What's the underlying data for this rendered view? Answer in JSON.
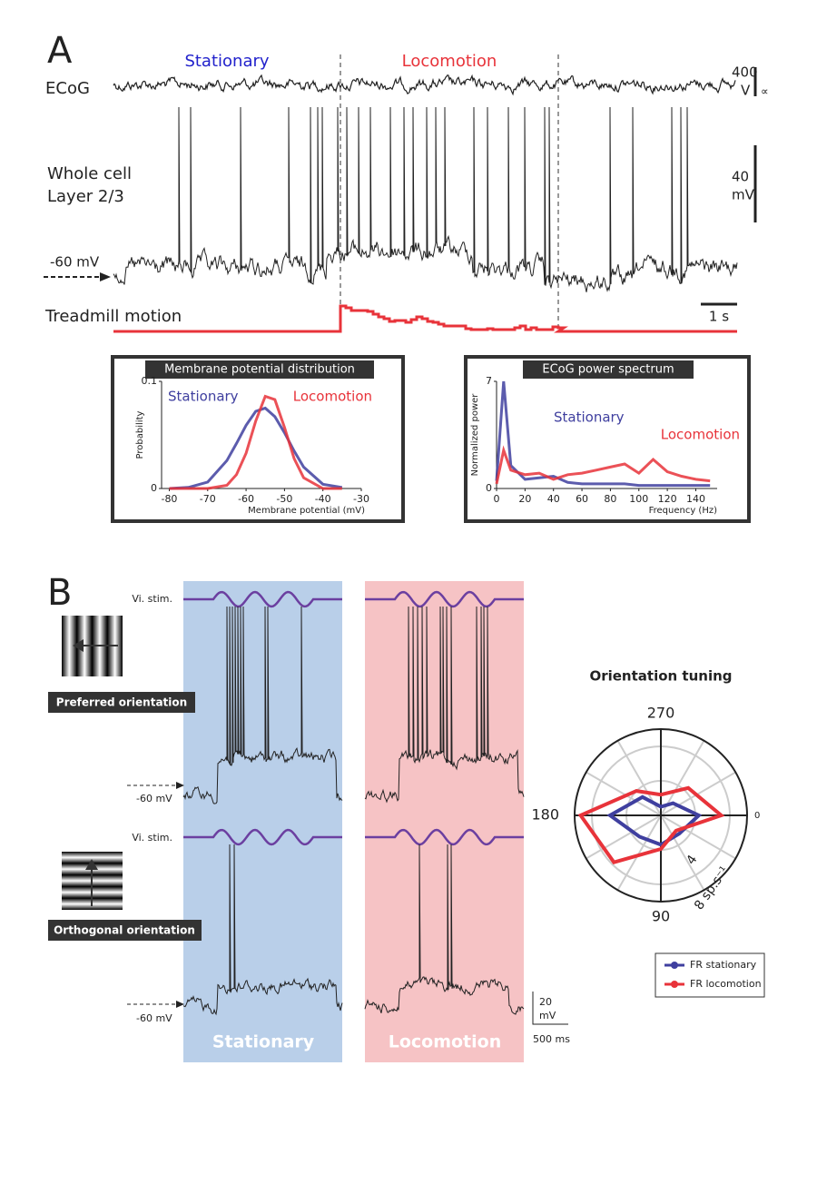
{
  "panel_a": {
    "label": "A",
    "stationary": "Stationary",
    "locomotion": "Locomotion",
    "ecog": "ECoG",
    "ecog_scale": "400",
    "ecog_unit": "V",
    "ecog_symbol": "∝",
    "whole_cell": "Whole cell",
    "layer": "Layer 2/3",
    "wc_scale": "40",
    "wc_unit": "mV",
    "baseline": "-60 mV",
    "treadmill": "Treadmill motion",
    "time_scale": "1 s"
  },
  "panel_b": {
    "label": "B",
    "stim_top": "Vi. stim.",
    "stim_bottom": "Vi. stim.",
    "preferred": "Preferred orientation",
    "orthogonal": "Orthogonal orientation",
    "baseline_top": "-60 mV",
    "baseline_bottom": "-60 mV",
    "stationary": "Stationary",
    "locomotion": "Locomotion",
    "scale_v": "20",
    "scale_unit": "mV",
    "scale_t": "500 ms"
  },
  "chart_data": [
    {
      "type": "line",
      "title": "Membrane potential distribution",
      "x_label": "Membrane potential (mV)",
      "y_label": "Probability",
      "xlim": [
        -82,
        -30
      ],
      "xticks": [
        -80,
        -70,
        -60,
        -50,
        -40,
        -30
      ],
      "ylim": [
        0,
        0.1
      ],
      "yticks": [
        0,
        0.1
      ],
      "series": [
        {
          "name": "Stationary",
          "color": "#3f3f9f",
          "x": [
            -80,
            -75,
            -70,
            -65,
            -62.5,
            -60,
            -57.5,
            -55,
            -52.5,
            -50,
            -47.5,
            -45,
            -40,
            -35
          ],
          "values": [
            0,
            0.001,
            0.006,
            0.026,
            0.042,
            0.059,
            0.072,
            0.075,
            0.067,
            0.052,
            0.035,
            0.02,
            0.004,
            0.001
          ]
        },
        {
          "name": "Locomotion",
          "color": "#e8333a",
          "x": [
            -80,
            -75,
            -70,
            -65,
            -62.5,
            -60,
            -57.5,
            -55,
            -52.5,
            -50,
            -47.5,
            -45,
            -40,
            -35
          ],
          "values": [
            0,
            0,
            0,
            0.003,
            0.013,
            0.033,
            0.063,
            0.086,
            0.083,
            0.057,
            0.028,
            0.01,
            0,
            0
          ]
        }
      ]
    },
    {
      "type": "line",
      "title": "ECoG power spectrum",
      "x_label": "Frequency (Hz)",
      "y_label": "Normalized power",
      "xlim": [
        0,
        155
      ],
      "xticks": [
        0,
        20,
        40,
        60,
        80,
        100,
        120,
        140
      ],
      "ylim": [
        0,
        7
      ],
      "yticks": [
        0,
        7
      ],
      "series": [
        {
          "name": "Stationary",
          "color": "#3f3f9f",
          "x": [
            0,
            5,
            10,
            20,
            30,
            40,
            50,
            60,
            70,
            80,
            90,
            100,
            110,
            120,
            130,
            140,
            150
          ],
          "values": [
            0.5,
            7,
            1.5,
            0.6,
            0.7,
            0.8,
            0.4,
            0.3,
            0.3,
            0.3,
            0.3,
            0.2,
            0.2,
            0.2,
            0.2,
            0.2,
            0.2
          ]
        },
        {
          "name": "Locomotion",
          "color": "#e8333a",
          "x": [
            0,
            5,
            10,
            20,
            30,
            40,
            50,
            60,
            70,
            80,
            90,
            100,
            110,
            120,
            130,
            140,
            150
          ],
          "values": [
            0.3,
            2.5,
            1.2,
            0.9,
            1,
            0.6,
            0.9,
            1,
            1.2,
            1.4,
            1.6,
            1,
            1.9,
            1.1,
            0.8,
            0.6,
            0.5
          ]
        }
      ]
    },
    {
      "type": "polar",
      "title": "Orientation tuning",
      "angles": [
        0,
        45,
        90,
        135,
        180,
        225,
        270,
        315
      ],
      "theta_ticks": [
        0,
        90,
        180,
        270
      ],
      "rlim": [
        0,
        10
      ],
      "rticks": [
        4,
        {
          "value": 8,
          "label": "8 sp.s⁻¹"
        }
      ],
      "series": [
        {
          "name": "FR stationary",
          "color": "#3f3f9f",
          "values": [
            4.4,
            3,
            3.4,
            3.5,
            5.9,
            3,
            1,
            2
          ]
        },
        {
          "name": "FR locomotion",
          "color": "#e8333a",
          "values": [
            7,
            2.5,
            3.9,
            7.7,
            9.3,
            4,
            2.4,
            4.5
          ]
        }
      ]
    }
  ]
}
